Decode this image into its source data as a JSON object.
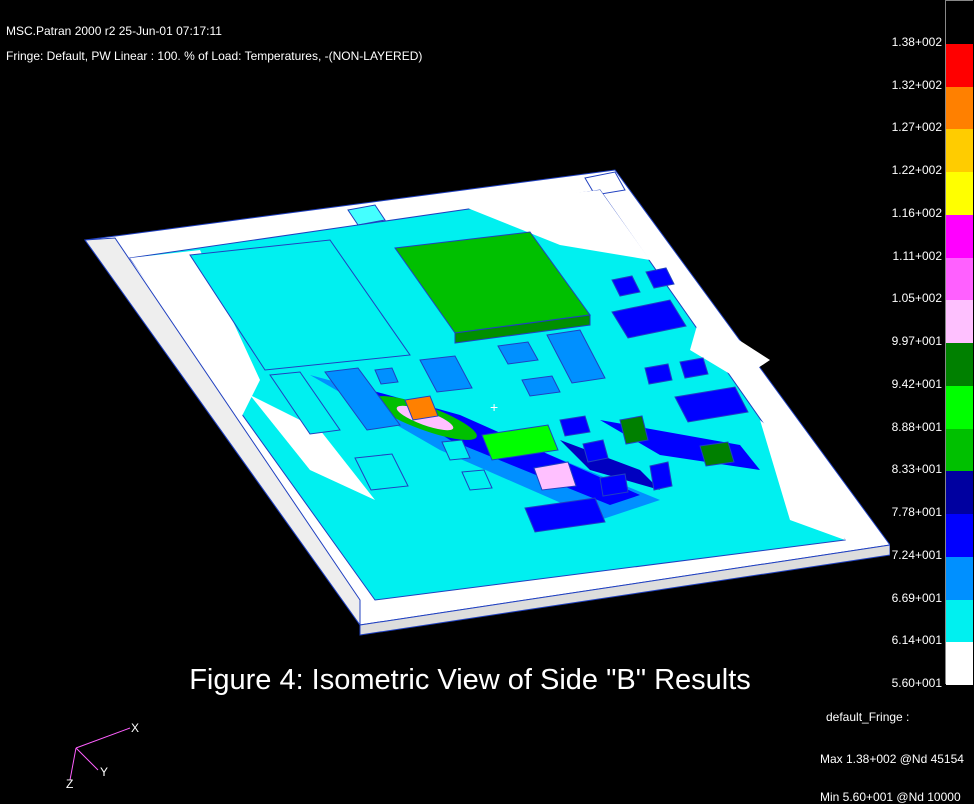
{
  "header": {
    "line1": "MSC.Patran 2000 r2 25-Jun-01 07:17:11",
    "line2": "Fringe: Default, PW Linear : 100. % of Load: Temperatures, -(NON-LAYERED)"
  },
  "legend": {
    "colors": [
      "#ffffff",
      "#00f0f0",
      "#0090ff",
      "#0000ff",
      "#0000a0",
      "#00c000",
      "#00ff00",
      "#008000",
      "#ffc0ff",
      "#ff60ff",
      "#ff00ff",
      "#ffff00",
      "#ffcc00",
      "#ff8000",
      "#ff0000",
      "#000000"
    ],
    "ticks": [
      "5.60+001",
      "6.14+001",
      "6.69+001",
      "7.24+001",
      "7.78+001",
      "8.33+001",
      "8.88+001",
      "9.42+001",
      "9.97+001",
      "1.05+002",
      "1.11+002",
      "1.16+002",
      "1.22+002",
      "1.27+002",
      "1.32+002",
      "1.38+002"
    ]
  },
  "caption": "Figure 4: Isometric View of Side \"B\" Results",
  "info": {
    "name": "default_Fringe :",
    "max": "Max 1.38+002 @Nd 45154",
    "min": "Min 5.60+001 @Nd 10000"
  },
  "triad": {
    "x": "X",
    "y": "Y",
    "z": "Z"
  }
}
